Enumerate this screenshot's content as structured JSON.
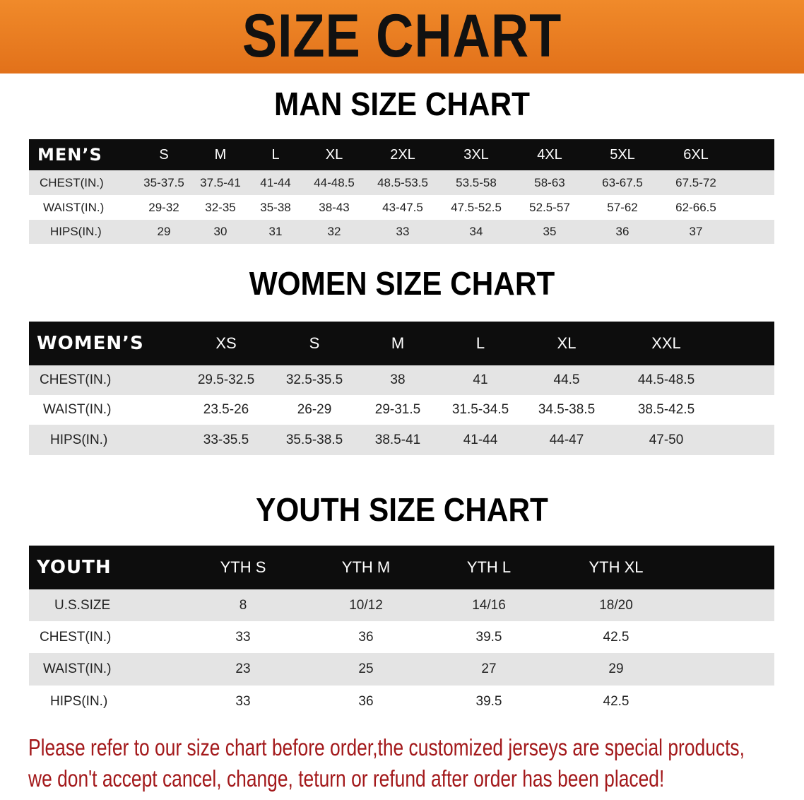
{
  "banner": {
    "title": "SIZE CHART",
    "color": "#e8791f"
  },
  "men": {
    "title": "MAN SIZE CHART",
    "header": [
      "MEN’S",
      "S",
      "M",
      "L",
      "XL",
      "2XL",
      "3XL",
      "4XL",
      "5XL",
      "6XL"
    ],
    "rows": [
      [
        "CHEST(IN.)",
        "35-37.5",
        "37.5-41",
        "41-44",
        "44-48.5",
        "48.5-53.5",
        "53.5-58",
        "58-63",
        "63-67.5",
        "67.5-72"
      ],
      [
        "WAIST(IN.)",
        "29-32",
        "32-35",
        "35-38",
        "38-43",
        "43-47.5",
        "47.5-52.5",
        "52.5-57",
        "57-62",
        "62-66.5"
      ],
      [
        "HIPS(IN.)",
        "29",
        "30",
        "31",
        "32",
        "33",
        "34",
        "35",
        "36",
        "37"
      ]
    ]
  },
  "women": {
    "title": "WOMEN SIZE CHART",
    "header": [
      "WOMEN’S",
      "XS",
      "S",
      "M",
      "L",
      "XL",
      "XXL"
    ],
    "rows": [
      [
        "CHEST(IN.)",
        "29.5-32.5",
        "32.5-35.5",
        "38",
        "41",
        "44.5",
        "44.5-48.5"
      ],
      [
        "WAIST(IN.)",
        "23.5-26",
        "26-29",
        "29-31.5",
        "31.5-34.5",
        "34.5-38.5",
        "38.5-42.5"
      ],
      [
        "HIPS(IN.)",
        "33-35.5",
        "35.5-38.5",
        "38.5-41",
        "41-44",
        "44-47",
        "47-50"
      ]
    ]
  },
  "youth": {
    "title": "YOUTH SIZE CHART",
    "header": [
      "YOUTH",
      "YTH S",
      "YTH M",
      "YTH L",
      "YTH XL"
    ],
    "rows": [
      [
        "U.S.SIZE",
        "8",
        "10/12",
        "14/16",
        "18/20"
      ],
      [
        "CHEST(IN.)",
        "33",
        "36",
        "39.5",
        "42.5"
      ],
      [
        "WAIST(IN.)",
        "23",
        "25",
        "27",
        "29"
      ],
      [
        "HIPS(IN.)",
        "33",
        "36",
        "39.5",
        "42.5"
      ]
    ]
  },
  "notice": {
    "line1": "Please refer to our size chart before order,the customized jerseys are special products,",
    "line2": "we don't accept cancel, change, teturn or refund after order has been placed!",
    "color": "#a3191b"
  }
}
